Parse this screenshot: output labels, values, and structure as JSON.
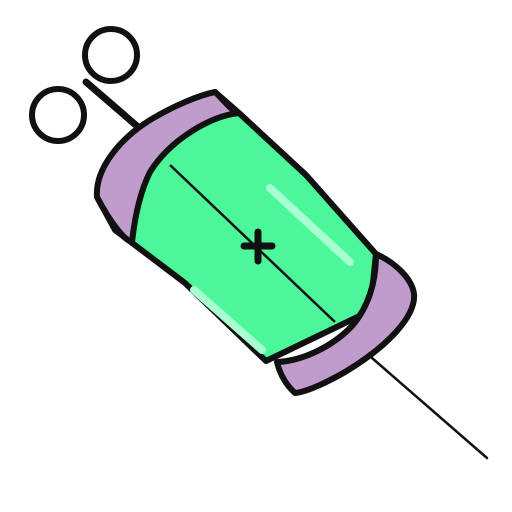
{
  "image": {
    "subject": "syringe",
    "background": "#ffffff",
    "colors": {
      "outline": "#111111",
      "barrel_fill": "#4cf79a",
      "barrel_highlight": "#a8ffd0",
      "caps_fill": "#c09ccc",
      "needle": "#111111"
    },
    "parts": {
      "finger_rings": "two-finger-rings",
      "plunger": "plunger-rod",
      "barrel": "liquid-barrel",
      "top_cap": "top-cap",
      "bottom_cap": "bottom-cap",
      "center_mark": "cross-mark",
      "needle": "needle"
    }
  }
}
